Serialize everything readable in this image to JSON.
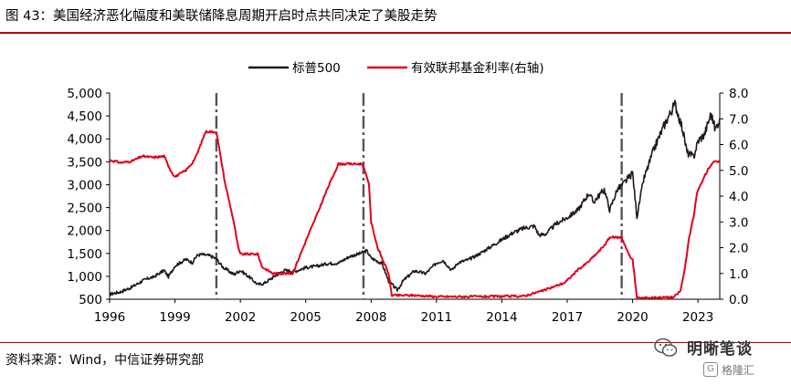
{
  "figure": {
    "title": "图 43：美国经济恶化幅度和美联储降息周期开启时点共同决定了美股走势",
    "source": "资料来源：Wind，中信证券研究部",
    "watermark": "明晰笔谈",
    "watermark_sub": "格隆汇",
    "watermark_sub_icon": "G"
  },
  "colors": {
    "rule": "#c00000",
    "sp500": "#231815",
    "fedfunds": "#e3001b",
    "marker": "#555555"
  },
  "chart_data": {
    "type": "line",
    "title": "",
    "xlabel": "",
    "ylabel": "",
    "x_ticks": [
      "1996",
      "1999",
      "2002",
      "2005",
      "2008",
      "2011",
      "2014",
      "2017",
      "2020",
      "2023"
    ],
    "xlim": [
      1996.0,
      2024.0
    ],
    "y_left": {
      "ticks": [
        "5,000",
        "4,500",
        "4,000",
        "3,500",
        "3,000",
        "2,500",
        "2,000",
        "1,500",
        "1,000",
        "500"
      ],
      "ylim": [
        500,
        5000
      ]
    },
    "y_right": {
      "ticks": [
        "8.0",
        "7.0",
        "6.0",
        "5.0",
        "4.0",
        "3.0",
        "2.0",
        "1.0",
        "0.0"
      ],
      "ylim": [
        0.0,
        8.0
      ]
    },
    "legend": {
      "position": "top-center",
      "entries": [
        "标普500",
        "有效联邦基金利率(右轴)"
      ]
    },
    "vertical_markers": [
      2000.9,
      2007.65,
      2019.5
    ],
    "series": [
      {
        "name": "标普500",
        "axis": "left",
        "points": [
          [
            1996.0,
            610
          ],
          [
            1996.5,
            660
          ],
          [
            1997.0,
            760
          ],
          [
            1997.5,
            900
          ],
          [
            1997.8,
            960
          ],
          [
            1998.0,
            980
          ],
          [
            1998.5,
            1130
          ],
          [
            1998.7,
            990
          ],
          [
            1999.0,
            1230
          ],
          [
            1999.5,
            1370
          ],
          [
            1999.8,
            1300
          ],
          [
            2000.0,
            1450
          ],
          [
            2000.2,
            1480
          ],
          [
            2000.6,
            1450
          ],
          [
            2000.9,
            1380
          ],
          [
            2001.2,
            1200
          ],
          [
            2001.7,
            1040
          ],
          [
            2002.0,
            1130
          ],
          [
            2002.5,
            950
          ],
          [
            2002.8,
            820
          ],
          [
            2003.1,
            850
          ],
          [
            2003.5,
            980
          ],
          [
            2004.0,
            1130
          ],
          [
            2004.5,
            1110
          ],
          [
            2005.0,
            1190
          ],
          [
            2005.5,
            1220
          ],
          [
            2006.0,
            1280
          ],
          [
            2006.5,
            1290
          ],
          [
            2007.0,
            1430
          ],
          [
            2007.5,
            1500
          ],
          [
            2007.8,
            1560
          ],
          [
            2008.0,
            1400
          ],
          [
            2008.5,
            1280
          ],
          [
            2008.8,
            900
          ],
          [
            2009.2,
            700
          ],
          [
            2009.5,
            920
          ],
          [
            2010.0,
            1120
          ],
          [
            2010.5,
            1060
          ],
          [
            2011.0,
            1290
          ],
          [
            2011.3,
            1350
          ],
          [
            2011.7,
            1130
          ],
          [
            2012.0,
            1300
          ],
          [
            2012.5,
            1370
          ],
          [
            2013.0,
            1500
          ],
          [
            2013.5,
            1650
          ],
          [
            2014.0,
            1800
          ],
          [
            2014.5,
            1950
          ],
          [
            2015.0,
            2050
          ],
          [
            2015.5,
            2100
          ],
          [
            2015.7,
            1900
          ],
          [
            2016.0,
            1920
          ],
          [
            2016.5,
            2150
          ],
          [
            2017.0,
            2280
          ],
          [
            2017.5,
            2450
          ],
          [
            2018.0,
            2820
          ],
          [
            2018.2,
            2620
          ],
          [
            2018.7,
            2900
          ],
          [
            2018.95,
            2450
          ],
          [
            2019.3,
            2900
          ],
          [
            2019.5,
            2980
          ],
          [
            2020.0,
            3250
          ],
          [
            2020.2,
            2300
          ],
          [
            2020.5,
            3100
          ],
          [
            2021.0,
            3800
          ],
          [
            2021.5,
            4350
          ],
          [
            2021.95,
            4760
          ],
          [
            2022.3,
            4200
          ],
          [
            2022.5,
            3700
          ],
          [
            2022.8,
            3600
          ],
          [
            2023.0,
            3950
          ],
          [
            2023.3,
            4100
          ],
          [
            2023.6,
            4550
          ],
          [
            2023.8,
            4200
          ],
          [
            2024.0,
            4450
          ]
        ]
      },
      {
        "name": "有效联邦基金利率(右轴)",
        "axis": "right",
        "points": [
          [
            1996.0,
            5.4
          ],
          [
            1996.5,
            5.3
          ],
          [
            1997.0,
            5.35
          ],
          [
            1997.5,
            5.55
          ],
          [
            1998.0,
            5.5
          ],
          [
            1998.5,
            5.55
          ],
          [
            1998.8,
            5.0
          ],
          [
            1999.0,
            4.75
          ],
          [
            1999.5,
            5.0
          ],
          [
            1999.8,
            5.3
          ],
          [
            2000.0,
            5.6
          ],
          [
            2000.4,
            6.5
          ],
          [
            2000.9,
            6.5
          ],
          [
            2001.0,
            6.0
          ],
          [
            2001.3,
            4.5
          ],
          [
            2001.7,
            3.0
          ],
          [
            2001.9,
            2.0
          ],
          [
            2002.0,
            1.75
          ],
          [
            2002.8,
            1.75
          ],
          [
            2003.0,
            1.25
          ],
          [
            2003.5,
            1.0
          ],
          [
            2004.4,
            1.0
          ],
          [
            2005.0,
            2.25
          ],
          [
            2005.5,
            3.25
          ],
          [
            2006.0,
            4.3
          ],
          [
            2006.5,
            5.25
          ],
          [
            2007.6,
            5.25
          ],
          [
            2007.9,
            4.5
          ],
          [
            2008.0,
            3.0
          ],
          [
            2008.3,
            2.0
          ],
          [
            2008.8,
            1.0
          ],
          [
            2008.95,
            0.15
          ],
          [
            2010.0,
            0.15
          ],
          [
            2011.0,
            0.1
          ],
          [
            2013.0,
            0.1
          ],
          [
            2015.0,
            0.12
          ],
          [
            2015.95,
            0.35
          ],
          [
            2016.9,
            0.65
          ],
          [
            2017.2,
            0.9
          ],
          [
            2017.5,
            1.15
          ],
          [
            2017.9,
            1.4
          ],
          [
            2018.2,
            1.65
          ],
          [
            2018.5,
            1.9
          ],
          [
            2018.8,
            2.2
          ],
          [
            2018.95,
            2.4
          ],
          [
            2019.5,
            2.4
          ],
          [
            2019.7,
            2.0
          ],
          [
            2019.9,
            1.6
          ],
          [
            2020.0,
            1.55
          ],
          [
            2020.2,
            0.05
          ],
          [
            2021.9,
            0.08
          ],
          [
            2022.2,
            0.33
          ],
          [
            2022.4,
            1.2
          ],
          [
            2022.6,
            2.4
          ],
          [
            2022.8,
            3.2
          ],
          [
            2022.95,
            4.1
          ],
          [
            2023.2,
            4.6
          ],
          [
            2023.5,
            5.1
          ],
          [
            2023.7,
            5.33
          ],
          [
            2024.0,
            5.33
          ]
        ]
      }
    ]
  }
}
